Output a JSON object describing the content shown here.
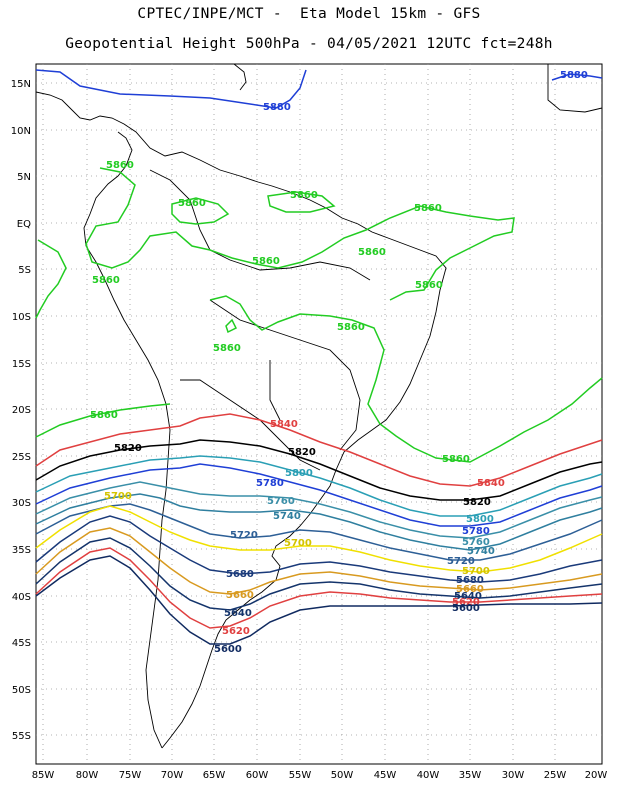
{
  "header": {
    "line1": "CPTEC/INPE/MCT -  Eta Model 15km - GFS",
    "line2": "Geopotential Height 500hPa - 04/05/2021 12UTC fct=248h"
  },
  "axes": {
    "lon_labels": [
      "85W",
      "80W",
      "75W",
      "70W",
      "65W",
      "60W",
      "55W",
      "50W",
      "45W",
      "40W",
      "35W",
      "30W",
      "25W",
      "20W"
    ],
    "lat_labels": [
      "15N",
      "10N",
      "5N",
      "EQ",
      "5S",
      "10S",
      "15S",
      "20S",
      "25S",
      "30S",
      "35S",
      "40S",
      "45S",
      "50S",
      "55S"
    ]
  },
  "contours": [
    {
      "level": "5880",
      "color": "#1f3fd6"
    },
    {
      "level": "5860",
      "color": "#22cc22"
    },
    {
      "level": "5840",
      "color": "#e04040"
    },
    {
      "level": "5820",
      "color": "#000000"
    },
    {
      "level": "5800",
      "color": "#2a9fb5"
    },
    {
      "level": "5780",
      "color": "#1f3fd6"
    },
    {
      "level": "5760",
      "color": "#3a8fa8"
    },
    {
      "level": "5740",
      "color": "#2f7f9f"
    },
    {
      "level": "5720",
      "color": "#2d5f96"
    },
    {
      "level": "5700",
      "color": "#f0e000"
    },
    {
      "level": "5680",
      "color": "#1a3a7a"
    },
    {
      "level": "5660",
      "color": "#d89a20"
    },
    {
      "level": "5640",
      "color": "#14346b"
    },
    {
      "level": "5620",
      "color": "#e04040"
    },
    {
      "level": "5600",
      "color": "#102a60"
    }
  ],
  "labels": {
    "l5880a": "5880",
    "l5880b": "5880",
    "l5860a": "5860",
    "l5860b": "5860",
    "l5860c": "5860",
    "l5860d": "5860",
    "l5860e": "5860",
    "l5860f": "5860",
    "l5860g": "5860",
    "l5860h": "5860",
    "l5860i": "5860",
    "l5860j": "5860",
    "l5860k": "5860",
    "l5860l": "5860",
    "l5840a": "5840",
    "l5840b": "5840",
    "l5820a": "5820",
    "l5820b": "5820",
    "l5820c": "5820",
    "l5800a": "5800",
    "l5800b": "5800",
    "l5780a": "5780",
    "l5780b": "5780",
    "l5760a": "5760",
    "l5760b": "5760",
    "l5740a": "5740",
    "l5740b": "5740",
    "l5720a": "5720",
    "l5720b": "5720",
    "l5700a": "5700",
    "l5700b": "5700",
    "l5700c": "5700",
    "l5680a": "5680",
    "l5680b": "5680",
    "l5660a": "5660",
    "l5660b": "5660",
    "l5640a": "5640",
    "l5640b": "5640",
    "l5620a": "5620",
    "l5620b": "5620",
    "l5600a": "5600",
    "l5600b": "5600"
  }
}
